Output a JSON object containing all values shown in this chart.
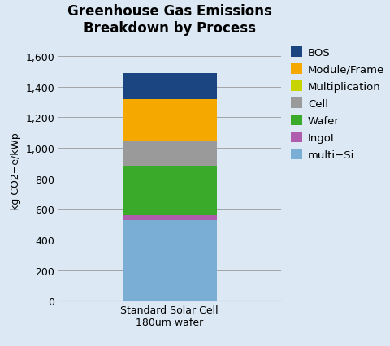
{
  "title": "Greenhouse Gas Emissions\nBreakdown by Process",
  "ylabel": "kg CO2−e/kWp",
  "x_label": "Standard Solar Cell\n180um wafer",
  "ylim": [
    0,
    1700
  ],
  "yticks": [
    0,
    200,
    400,
    600,
    800,
    1000,
    1200,
    1400,
    1600
  ],
  "segments": [
    {
      "label": "multi−Si",
      "value": 530,
      "color": "#7aaed4"
    },
    {
      "label": "Ingot",
      "value": 28,
      "color": "#b05db0"
    },
    {
      "label": "Wafer",
      "value": 325,
      "color": "#3aaa2a"
    },
    {
      "label": "Cell",
      "value": 160,
      "color": "#9a9a9a"
    },
    {
      "label": "Multiplication",
      "value": 8,
      "color": "#c8d400"
    },
    {
      "label": "Module/Frame",
      "value": 268,
      "color": "#f5a800"
    },
    {
      "label": "BOS",
      "value": 171,
      "color": "#1a4580"
    }
  ],
  "background_color": "#dce9f5",
  "grid_color": "#999999",
  "title_fontsize": 12,
  "axis_fontsize": 9,
  "tick_fontsize": 9,
  "legend_fontsize": 9.5,
  "bar_width": 0.55
}
